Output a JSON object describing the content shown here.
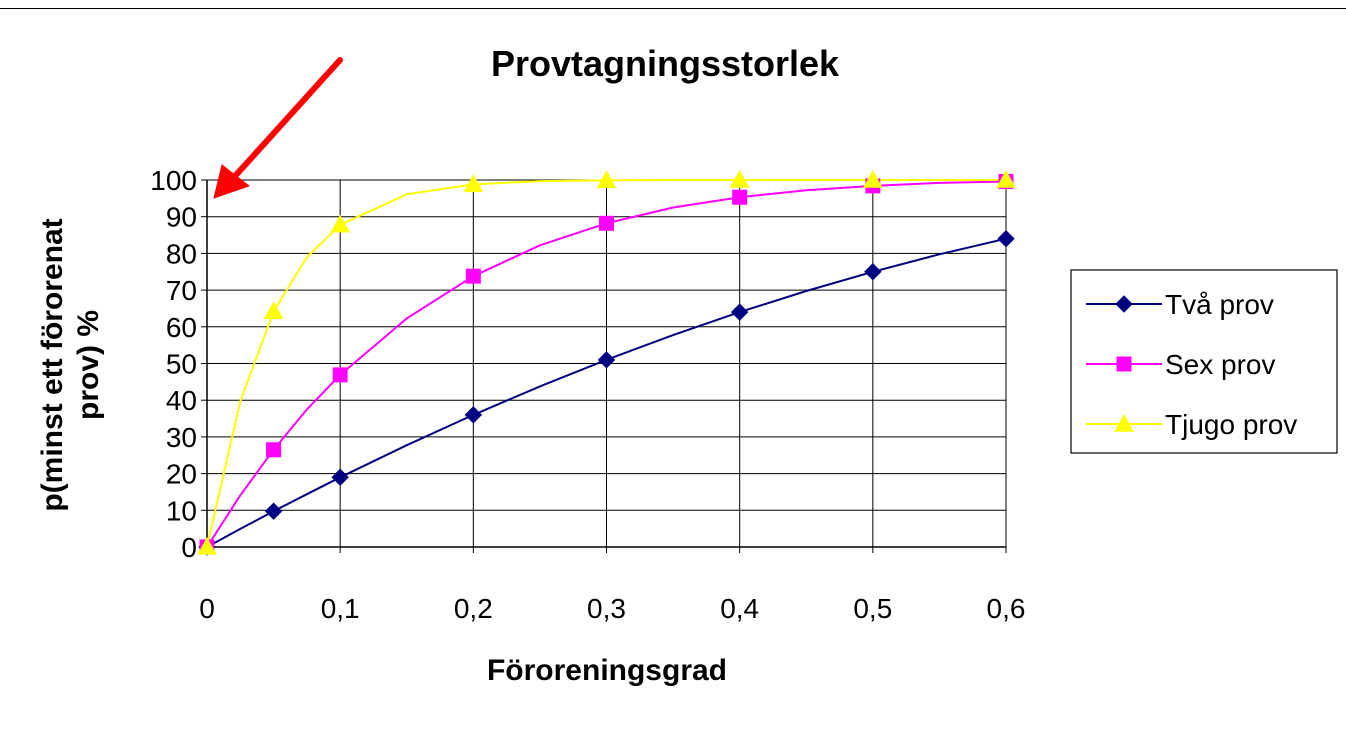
{
  "chart_data": {
    "type": "line",
    "title": "Provtagningsstorlek",
    "xlabel": "Föroreningsgrad",
    "ylabel_lines": [
      "p(minst ett förorenat",
      "prov) %"
    ],
    "x_tick_labels": [
      "0",
      "0,1",
      "0,2",
      "0,3",
      "0,4",
      "0,5",
      "0,6"
    ],
    "y_tick_labels": [
      "0",
      "10",
      "20",
      "30",
      "40",
      "50",
      "60",
      "70",
      "80",
      "90",
      "100"
    ],
    "xlim": [
      0,
      0.6
    ],
    "ylim": [
      0,
      100
    ],
    "grid": true,
    "legend_position": "right",
    "annotation": "red-arrow",
    "series": [
      {
        "name": "Två prov",
        "color": "#000080",
        "marker": "diamond",
        "points": [
          [
            0,
            0
          ],
          [
            0.05,
            9.75
          ],
          [
            0.1,
            19
          ],
          [
            0.2,
            36
          ],
          [
            0.3,
            51
          ],
          [
            0.4,
            64
          ],
          [
            0.5,
            75
          ],
          [
            0.6,
            84
          ]
        ],
        "curve": [
          [
            0,
            0
          ],
          [
            0.025,
            4.94
          ],
          [
            0.05,
            9.75
          ],
          [
            0.075,
            14.4
          ],
          [
            0.1,
            19
          ],
          [
            0.15,
            27.75
          ],
          [
            0.2,
            36
          ],
          [
            0.25,
            43.75
          ],
          [
            0.3,
            51
          ],
          [
            0.35,
            57.75
          ],
          [
            0.4,
            64
          ],
          [
            0.45,
            69.75
          ],
          [
            0.5,
            75
          ],
          [
            0.55,
            79.75
          ],
          [
            0.6,
            84
          ]
        ]
      },
      {
        "name": "Sex prov",
        "color": "#ff00ff",
        "marker": "square",
        "points": [
          [
            0,
            0
          ],
          [
            0.05,
            26.5
          ],
          [
            0.1,
            46.9
          ],
          [
            0.2,
            73.8
          ],
          [
            0.3,
            88.2
          ],
          [
            0.4,
            95.3
          ],
          [
            0.5,
            98.4
          ],
          [
            0.6,
            99.6
          ]
        ],
        "curve": [
          [
            0,
            0
          ],
          [
            0.025,
            14.1
          ],
          [
            0.05,
            26.5
          ],
          [
            0.075,
            37.5
          ],
          [
            0.1,
            46.9
          ],
          [
            0.15,
            62.3
          ],
          [
            0.2,
            73.8
          ],
          [
            0.25,
            82.2
          ],
          [
            0.3,
            88.2
          ],
          [
            0.35,
            92.5
          ],
          [
            0.4,
            95.3
          ],
          [
            0.45,
            97.2
          ],
          [
            0.5,
            98.4
          ],
          [
            0.55,
            99.2
          ],
          [
            0.6,
            99.6
          ]
        ]
      },
      {
        "name": "Tjugo prov",
        "color": "#ffff00",
        "marker": "triangle",
        "points": [
          [
            0,
            0
          ],
          [
            0.05,
            64.2
          ],
          [
            0.1,
            87.8
          ],
          [
            0.2,
            98.8
          ],
          [
            0.3,
            99.9
          ],
          [
            0.4,
            100
          ],
          [
            0.5,
            100
          ],
          [
            0.6,
            100
          ]
        ],
        "curve": [
          [
            0,
            0
          ],
          [
            0.025,
            39.7
          ],
          [
            0.05,
            64.2
          ],
          [
            0.075,
            79
          ],
          [
            0.1,
            87.8
          ],
          [
            0.15,
            96.1
          ],
          [
            0.2,
            98.8
          ],
          [
            0.25,
            99.7
          ],
          [
            0.3,
            99.9
          ],
          [
            0.35,
            100
          ],
          [
            0.4,
            100
          ],
          [
            0.5,
            100
          ],
          [
            0.6,
            100
          ]
        ]
      }
    ]
  }
}
